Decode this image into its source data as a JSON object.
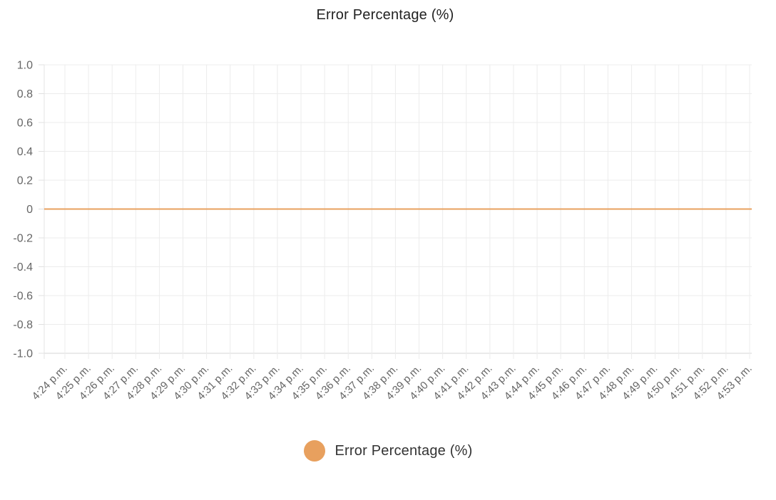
{
  "chart_data": {
    "type": "line",
    "title": "Error Percentage (%)",
    "xlabel": "",
    "ylabel": "",
    "x": [
      "4:24 p.m.",
      "4:25 p.m.",
      "4:26 p.m.",
      "4:27 p.m.",
      "4:28 p.m.",
      "4:29 p.m.",
      "4:30 p.m.",
      "4:31 p.m.",
      "4:32 p.m.",
      "4:33 p.m.",
      "4:34 p.m.",
      "4:35 p.m.",
      "4:36 p.m.",
      "4:37 p.m.",
      "4:38 p.m.",
      "4:39 p.m.",
      "4:40 p.m.",
      "4:41 p.m.",
      "4:42 p.m.",
      "4:43 p.m.",
      "4:44 p.m.",
      "4:45 p.m.",
      "4:46 p.m.",
      "4:47 p.m.",
      "4:48 p.m.",
      "4:49 p.m.",
      "4:50 p.m.",
      "4:51 p.m.",
      "4:52 p.m.",
      "4:53 p.m."
    ],
    "y_ticks": [
      "1.0",
      "0.8",
      "0.6",
      "0.4",
      "0.2",
      "0",
      "-0.2",
      "-0.4",
      "-0.6",
      "-0.8",
      "-1.0"
    ],
    "ylim": [
      -1.0,
      1.0
    ],
    "grid": true,
    "legend_position": "bottom",
    "series": [
      {
        "name": "Error Percentage (%)",
        "color": "#e8a05e",
        "values": [
          0,
          0,
          0,
          0,
          0,
          0,
          0,
          0,
          0,
          0,
          0,
          0,
          0,
          0,
          0,
          0,
          0,
          0,
          0,
          0,
          0,
          0,
          0,
          0,
          0,
          0,
          0,
          0,
          0,
          0
        ]
      }
    ]
  }
}
